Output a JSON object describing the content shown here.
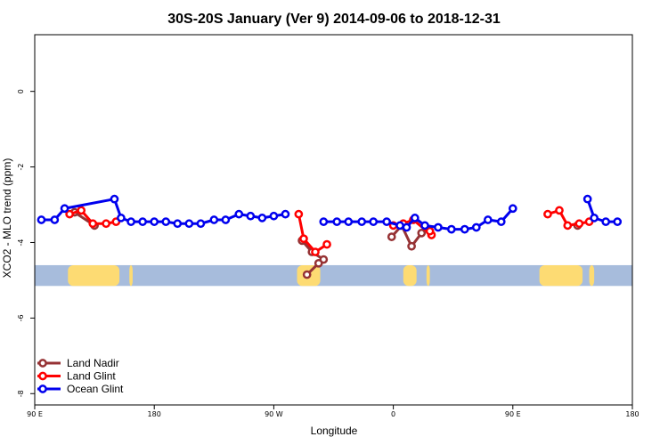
{
  "chart_data": {
    "type": "line",
    "title": "30S-20S January (Ver 9)   2014-09-06 to 2018-12-31",
    "xlabel": "Longitude",
    "ylabel": "XCO2 - MLO trend (ppm)",
    "xlim": [
      90,
      450
    ],
    "ylim": [
      -8.3,
      1.5
    ],
    "x_ticks": [
      {
        "value": 90,
        "label": "90 E"
      },
      {
        "value": 162,
        "label": "180"
      },
      {
        "value": 234,
        "label": "90 W"
      },
      {
        "value": 306,
        "label": "0"
      },
      {
        "value": 378,
        "label": "90 E"
      },
      {
        "value": 450,
        "label": "180"
      }
    ],
    "y_ticks": [
      0,
      -2,
      -4,
      -6,
      -8
    ],
    "grid": false,
    "legend_position": "bottom-left",
    "band": {
      "y_range": [
        -5.15,
        -4.6
      ],
      "ocean_color": "#a7bcdc",
      "land_color": "#fddb73",
      "land_x_ranges": [
        [
          110,
          141
        ],
        [
          147,
          149
        ],
        [
          248,
          262
        ],
        [
          312,
          320
        ],
        [
          326,
          328
        ],
        [
          394,
          420
        ],
        [
          424,
          427
        ]
      ]
    },
    "series": [
      {
        "name": "Land Nadir",
        "color": "#963234",
        "segments": [
          [
            [
              114,
              -3.2
            ],
            [
              126,
              -3.55
            ]
          ],
          [
            [
              251,
              -3.95
            ],
            [
              257,
              -4.25
            ],
            [
              264,
              -4.45
            ],
            [
              261,
              -4.55
            ],
            [
              254,
              -4.85
            ]
          ],
          [
            [
              305,
              -3.85
            ],
            [
              311,
              -3.55
            ],
            [
              317,
              -4.1
            ],
            [
              323,
              -3.75
            ]
          ],
          [
            [
              417,
              -3.55
            ]
          ]
        ]
      },
      {
        "name": "Land Glint",
        "color": "#ff0000",
        "segments": [
          [
            [
              111,
              -3.25
            ],
            [
              118,
              -3.15
            ],
            [
              125,
              -3.5
            ],
            [
              133,
              -3.5
            ],
            [
              139,
              -3.45
            ]
          ],
          [
            [
              249,
              -3.25
            ],
            [
              252,
              -3.9
            ],
            [
              259,
              -4.25
            ],
            [
              266,
              -4.05
            ]
          ],
          [
            [
              306,
              -3.55
            ],
            [
              312,
              -3.5
            ],
            [
              318,
              -3.4
            ],
            [
              329,
              -3.8
            ],
            [
              328,
              -3.7
            ]
          ],
          [
            [
              399,
              -3.25
            ],
            [
              406,
              -3.15
            ],
            [
              411,
              -3.55
            ],
            [
              418,
              -3.5
            ],
            [
              424,
              -3.45
            ]
          ]
        ]
      },
      {
        "name": "Ocean Glint",
        "color": "#0000ee",
        "segments": [
          [
            [
              94,
              -3.4
            ],
            [
              102,
              -3.4
            ],
            [
              108,
              -3.1
            ],
            [
              138,
              -2.85
            ],
            [
              142,
              -3.35
            ],
            [
              148,
              -3.45
            ],
            [
              155,
              -3.45
            ],
            [
              162,
              -3.45
            ],
            [
              169,
              -3.45
            ],
            [
              176,
              -3.5
            ],
            [
              183,
              -3.5
            ],
            [
              190,
              -3.5
            ],
            [
              198,
              -3.4
            ],
            [
              205,
              -3.4
            ],
            [
              213,
              -3.25
            ],
            [
              220,
              -3.3
            ],
            [
              227,
              -3.35
            ],
            [
              234,
              -3.3
            ],
            [
              241,
              -3.25
            ]
          ],
          [
            [
              264,
              -3.45
            ],
            [
              272,
              -3.45
            ],
            [
              279,
              -3.45
            ],
            [
              287,
              -3.45
            ],
            [
              294,
              -3.45
            ],
            [
              302,
              -3.45
            ],
            [
              310,
              -3.55
            ],
            [
              314,
              -3.6
            ],
            [
              319,
              -3.35
            ],
            [
              325,
              -3.55
            ],
            [
              333,
              -3.6
            ],
            [
              341,
              -3.65
            ],
            [
              349,
              -3.65
            ],
            [
              356,
              -3.6
            ],
            [
              363,
              -3.4
            ],
            [
              371,
              -3.45
            ],
            [
              378,
              -3.1
            ]
          ],
          [
            [
              423,
              -2.85
            ],
            [
              427,
              -3.35
            ],
            [
              434,
              -3.45
            ],
            [
              441,
              -3.45
            ]
          ]
        ]
      }
    ]
  }
}
